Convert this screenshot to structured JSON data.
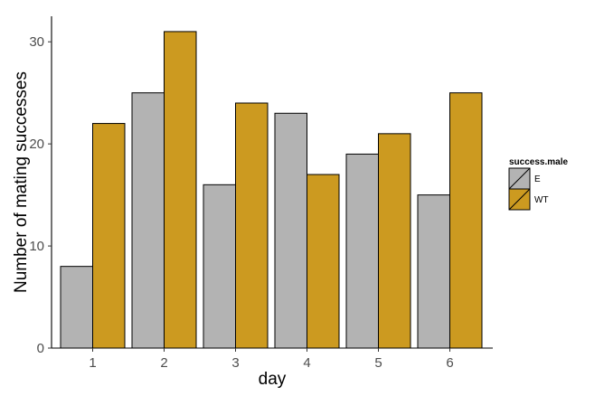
{
  "chart_data": {
    "type": "bar",
    "title": "",
    "xlabel": "day",
    "ylabel": "Number of mating successes",
    "categories": [
      "1",
      "2",
      "3",
      "4",
      "5",
      "6"
    ],
    "series": [
      {
        "name": "E",
        "values": [
          8,
          25,
          16,
          23,
          19,
          15
        ],
        "color": "#b3b3b3"
      },
      {
        "name": "WT",
        "values": [
          22,
          31,
          24,
          17,
          21,
          25
        ],
        "color": "#cc9a20"
      }
    ],
    "ylim": [
      0,
      32.5
    ],
    "yticks": [
      0,
      10,
      20,
      30
    ],
    "grid": false,
    "legend": {
      "title": "success.male",
      "placement": "right",
      "entries": [
        "E",
        "WT"
      ]
    },
    "colors": {
      "bar_outline": "#000000",
      "axis": "#000000",
      "tick_label": "#4d4d4d"
    }
  }
}
